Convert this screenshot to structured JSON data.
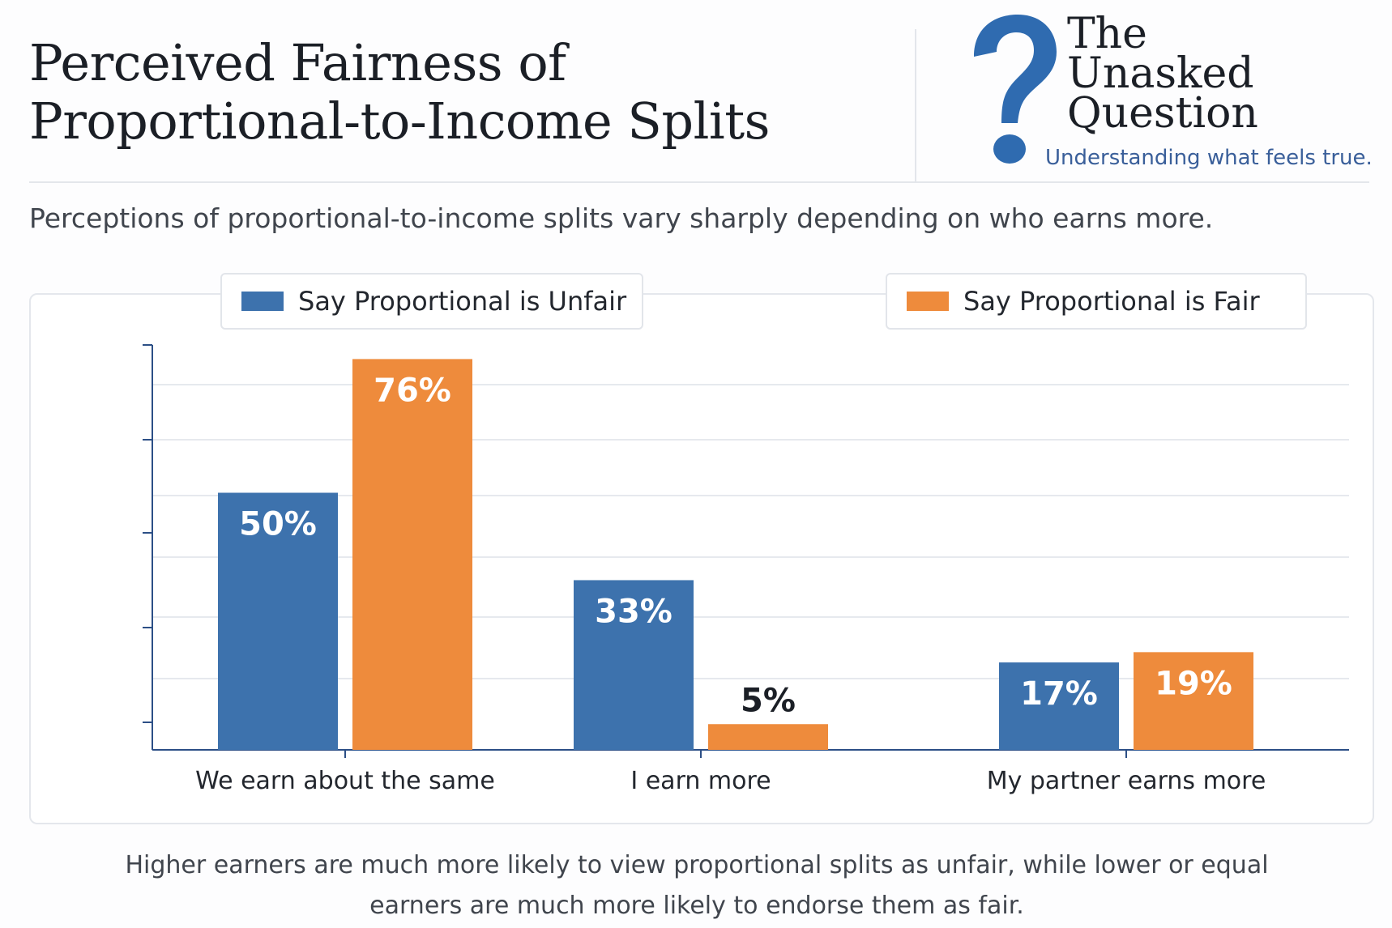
{
  "header": {
    "title_line1": "Perceived Fairness of",
    "title_line2": "Proportional-to-Income Splits",
    "subtitle": "Perceptions of proportional-to-income splits vary sharply depending on who earns more."
  },
  "brand": {
    "name_line1": "The",
    "name_line2": "Unasked",
    "name_line3": "Question",
    "tagline": "Understanding what feels true.",
    "icon": "question-mark-icon"
  },
  "colors": {
    "unfair": "#3d72ad",
    "fair": "#ee8b3c",
    "axis": "#2c4f86",
    "grid": "#e6e9ee",
    "label_light": "#ffffff",
    "label_dark": "#1b1f26"
  },
  "chart_data": {
    "type": "bar",
    "title": "Perceived Fairness of Proportional-to-Income Splits",
    "xlabel": "",
    "ylabel": "",
    "ylim": [
      0,
      80
    ],
    "grid": true,
    "legend": "top",
    "categories": [
      "We earn about the same",
      "I earn more",
      "My partner earns more"
    ],
    "series": [
      {
        "name": "Say Proportional is Unfair",
        "values": [
          50,
          33,
          17
        ],
        "labels": [
          "50%",
          "33%",
          "17%"
        ]
      },
      {
        "name": "Say Proportional is Fair",
        "values": [
          76,
          5,
          19
        ],
        "labels": [
          "76%",
          "5%",
          "19%"
        ]
      }
    ]
  },
  "footnote": "Higher earners are much more likely to view proportional splits as unfair, while lower or equal earners are much more likely to endorse them as fair."
}
